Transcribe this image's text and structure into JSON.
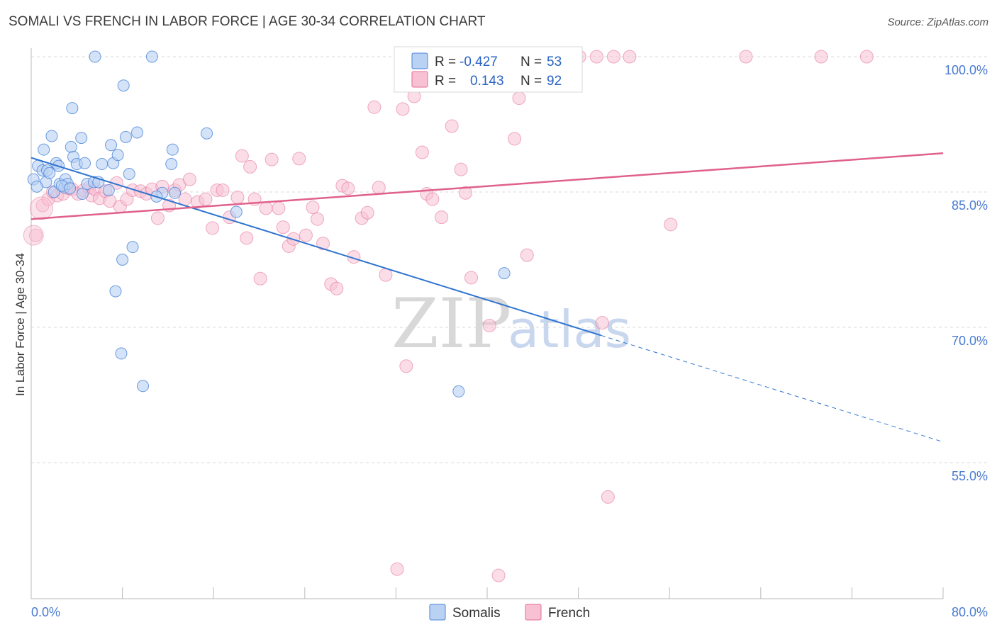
{
  "title": "SOMALI VS FRENCH IN LABOR FORCE | AGE 30-34 CORRELATION CHART",
  "source": "Source: ZipAtlas.com",
  "watermark": {
    "zip": "ZIP",
    "atlas": "atlas"
  },
  "colors": {
    "somali": "#4a86d8",
    "somali_fill": "#b9d1f3",
    "french": "#e46a93",
    "french_fill": "#f7c1d3",
    "axis_text": "#4a7bd0",
    "grid": "#d9d9d9"
  },
  "legend": {
    "rows": [
      {
        "r_label": "R =",
        "r_value": "-0.427",
        "n_label": "N =",
        "n_value": "53"
      },
      {
        "r_label": "R =",
        "r_value": "0.143",
        "n_label": "N =",
        "n_value": "92"
      }
    ]
  },
  "bottom_legend": {
    "somali": "Somalis",
    "french": "French"
  },
  "chart_data": {
    "type": "scatter",
    "title": "SOMALI VS FRENCH IN LABOR FORCE | AGE 30-34 CORRELATION CHART",
    "xlabel": "",
    "ylabel": "In Labor Force | Age 30-34",
    "xlim": [
      0,
      80
    ],
    "ylim": [
      40,
      102
    ],
    "x_tick_labels": [
      "0.0%",
      "80.0%"
    ],
    "y_ticks": [
      55,
      70,
      85,
      100
    ],
    "y_tick_labels": [
      "55.0%",
      "70.0%",
      "85.0%",
      "100.0%"
    ],
    "series": [
      {
        "name": "Somalis",
        "r": -0.427,
        "n": 53,
        "trend": {
          "x0": 0,
          "y0": 88.8,
          "x1": 50,
          "y1": 69.1,
          "dash_to_x": 80,
          "dash_to_y": 57.3
        },
        "points": [
          [
            0.2,
            86.4
          ],
          [
            0.6,
            87.9
          ],
          [
            1.0,
            87.4
          ],
          [
            1.1,
            89.7
          ],
          [
            1.3,
            86.1
          ],
          [
            1.4,
            87.4
          ],
          [
            1.8,
            91.2
          ],
          [
            2.0,
            85.0
          ],
          [
            2.2,
            88.2
          ],
          [
            2.4,
            87.9
          ],
          [
            2.5,
            85.9
          ],
          [
            2.9,
            85.5
          ],
          [
            3.0,
            86.4
          ],
          [
            3.2,
            85.9
          ],
          [
            3.5,
            90.0
          ],
          [
            3.6,
            94.3
          ],
          [
            3.7,
            88.9
          ],
          [
            4.0,
            88.1
          ],
          [
            4.4,
            91.0
          ],
          [
            4.5,
            84.8
          ],
          [
            4.7,
            88.2
          ],
          [
            4.9,
            85.9
          ],
          [
            5.5,
            86.1
          ],
          [
            5.6,
            100.0
          ],
          [
            5.9,
            86.1
          ],
          [
            6.2,
            88.1
          ],
          [
            7.0,
            90.2
          ],
          [
            7.2,
            88.2
          ],
          [
            7.4,
            74.0
          ],
          [
            7.6,
            89.1
          ],
          [
            7.9,
            67.1
          ],
          [
            8.0,
            77.5
          ],
          [
            8.1,
            96.8
          ],
          [
            8.3,
            91.1
          ],
          [
            8.6,
            87.0
          ],
          [
            8.9,
            78.9
          ],
          [
            9.3,
            91.6
          ],
          [
            9.8,
            63.5
          ],
          [
            10.6,
            100.0
          ],
          [
            11.5,
            84.9
          ],
          [
            12.3,
            88.1
          ],
          [
            12.4,
            89.7
          ],
          [
            12.6,
            84.9
          ],
          [
            15.4,
            91.5
          ],
          [
            18.0,
            82.8
          ],
          [
            37.5,
            62.9
          ],
          [
            41.5,
            76.0
          ],
          [
            0.5,
            85.6
          ],
          [
            1.6,
            87.1
          ],
          [
            2.7,
            85.7
          ],
          [
            3.4,
            85.4
          ],
          [
            6.8,
            85.2
          ],
          [
            11.0,
            84.5
          ]
        ]
      },
      {
        "name": "French",
        "r": 0.143,
        "n": 92,
        "trend": {
          "x0": 0,
          "y0": 82.0,
          "x1": 80,
          "y1": 89.3
        },
        "points": [
          [
            0.4,
            80.2
          ],
          [
            1.0,
            83.5
          ],
          [
            1.5,
            84.2
          ],
          [
            1.9,
            85.0
          ],
          [
            2.3,
            84.6
          ],
          [
            2.8,
            84.8
          ],
          [
            3.3,
            85.4
          ],
          [
            3.6,
            85.3
          ],
          [
            4.1,
            84.8
          ],
          [
            4.6,
            85.2
          ],
          [
            5.1,
            85.5
          ],
          [
            5.3,
            84.6
          ],
          [
            5.6,
            85.3
          ],
          [
            6.0,
            84.3
          ],
          [
            6.5,
            85.1
          ],
          [
            6.9,
            84.0
          ],
          [
            7.5,
            86.0
          ],
          [
            7.8,
            83.4
          ],
          [
            8.4,
            84.2
          ],
          [
            8.9,
            85.2
          ],
          [
            9.6,
            85.1
          ],
          [
            10.1,
            84.8
          ],
          [
            10.6,
            85.3
          ],
          [
            11.1,
            82.1
          ],
          [
            11.5,
            85.6
          ],
          [
            12.1,
            83.5
          ],
          [
            12.6,
            85.2
          ],
          [
            13.0,
            85.8
          ],
          [
            13.5,
            84.2
          ],
          [
            13.9,
            86.4
          ],
          [
            14.6,
            83.9
          ],
          [
            15.3,
            84.2
          ],
          [
            15.9,
            81.0
          ],
          [
            16.3,
            85.2
          ],
          [
            16.8,
            85.2
          ],
          [
            17.4,
            82.2
          ],
          [
            18.1,
            84.4
          ],
          [
            18.5,
            89.0
          ],
          [
            18.9,
            79.9
          ],
          [
            19.2,
            87.8
          ],
          [
            19.6,
            84.2
          ],
          [
            20.1,
            75.4
          ],
          [
            20.6,
            83.2
          ],
          [
            21.1,
            88.6
          ],
          [
            21.7,
            83.2
          ],
          [
            22.1,
            81.1
          ],
          [
            22.6,
            79.0
          ],
          [
            23.0,
            79.8
          ],
          [
            23.5,
            88.7
          ],
          [
            24.1,
            80.2
          ],
          [
            24.7,
            83.3
          ],
          [
            25.1,
            82.0
          ],
          [
            25.6,
            79.3
          ],
          [
            26.3,
            74.8
          ],
          [
            26.8,
            74.3
          ],
          [
            27.3,
            85.7
          ],
          [
            27.8,
            85.4
          ],
          [
            28.3,
            77.8
          ],
          [
            29.0,
            82.1
          ],
          [
            29.5,
            82.7
          ],
          [
            30.1,
            94.4
          ],
          [
            30.5,
            85.5
          ],
          [
            31.1,
            75.8
          ],
          [
            32.1,
            43.2
          ],
          [
            32.6,
            94.2
          ],
          [
            32.9,
            65.7
          ],
          [
            33.6,
            95.6
          ],
          [
            34.3,
            89.4
          ],
          [
            34.7,
            84.8
          ],
          [
            35.2,
            84.2
          ],
          [
            36.0,
            82.2
          ],
          [
            36.9,
            92.3
          ],
          [
            37.2,
            100.0
          ],
          [
            37.7,
            87.5
          ],
          [
            38.1,
            84.9
          ],
          [
            38.6,
            75.5
          ],
          [
            40.2,
            70.2
          ],
          [
            41.0,
            42.5
          ],
          [
            42.4,
            90.9
          ],
          [
            42.8,
            95.4
          ],
          [
            43.5,
            78.0
          ],
          [
            48.1,
            100.0
          ],
          [
            50.1,
            70.5
          ],
          [
            50.6,
            51.2
          ],
          [
            51.1,
            100.0
          ],
          [
            52.5,
            100.0
          ],
          [
            56.1,
            81.4
          ],
          [
            62.7,
            100.0
          ],
          [
            69.3,
            100.0
          ],
          [
            73.3,
            100.0
          ],
          [
            49.6,
            100.0
          ],
          [
            41.8,
            100.0
          ]
        ]
      }
    ],
    "grid": true,
    "legend_placement": "top-center"
  }
}
